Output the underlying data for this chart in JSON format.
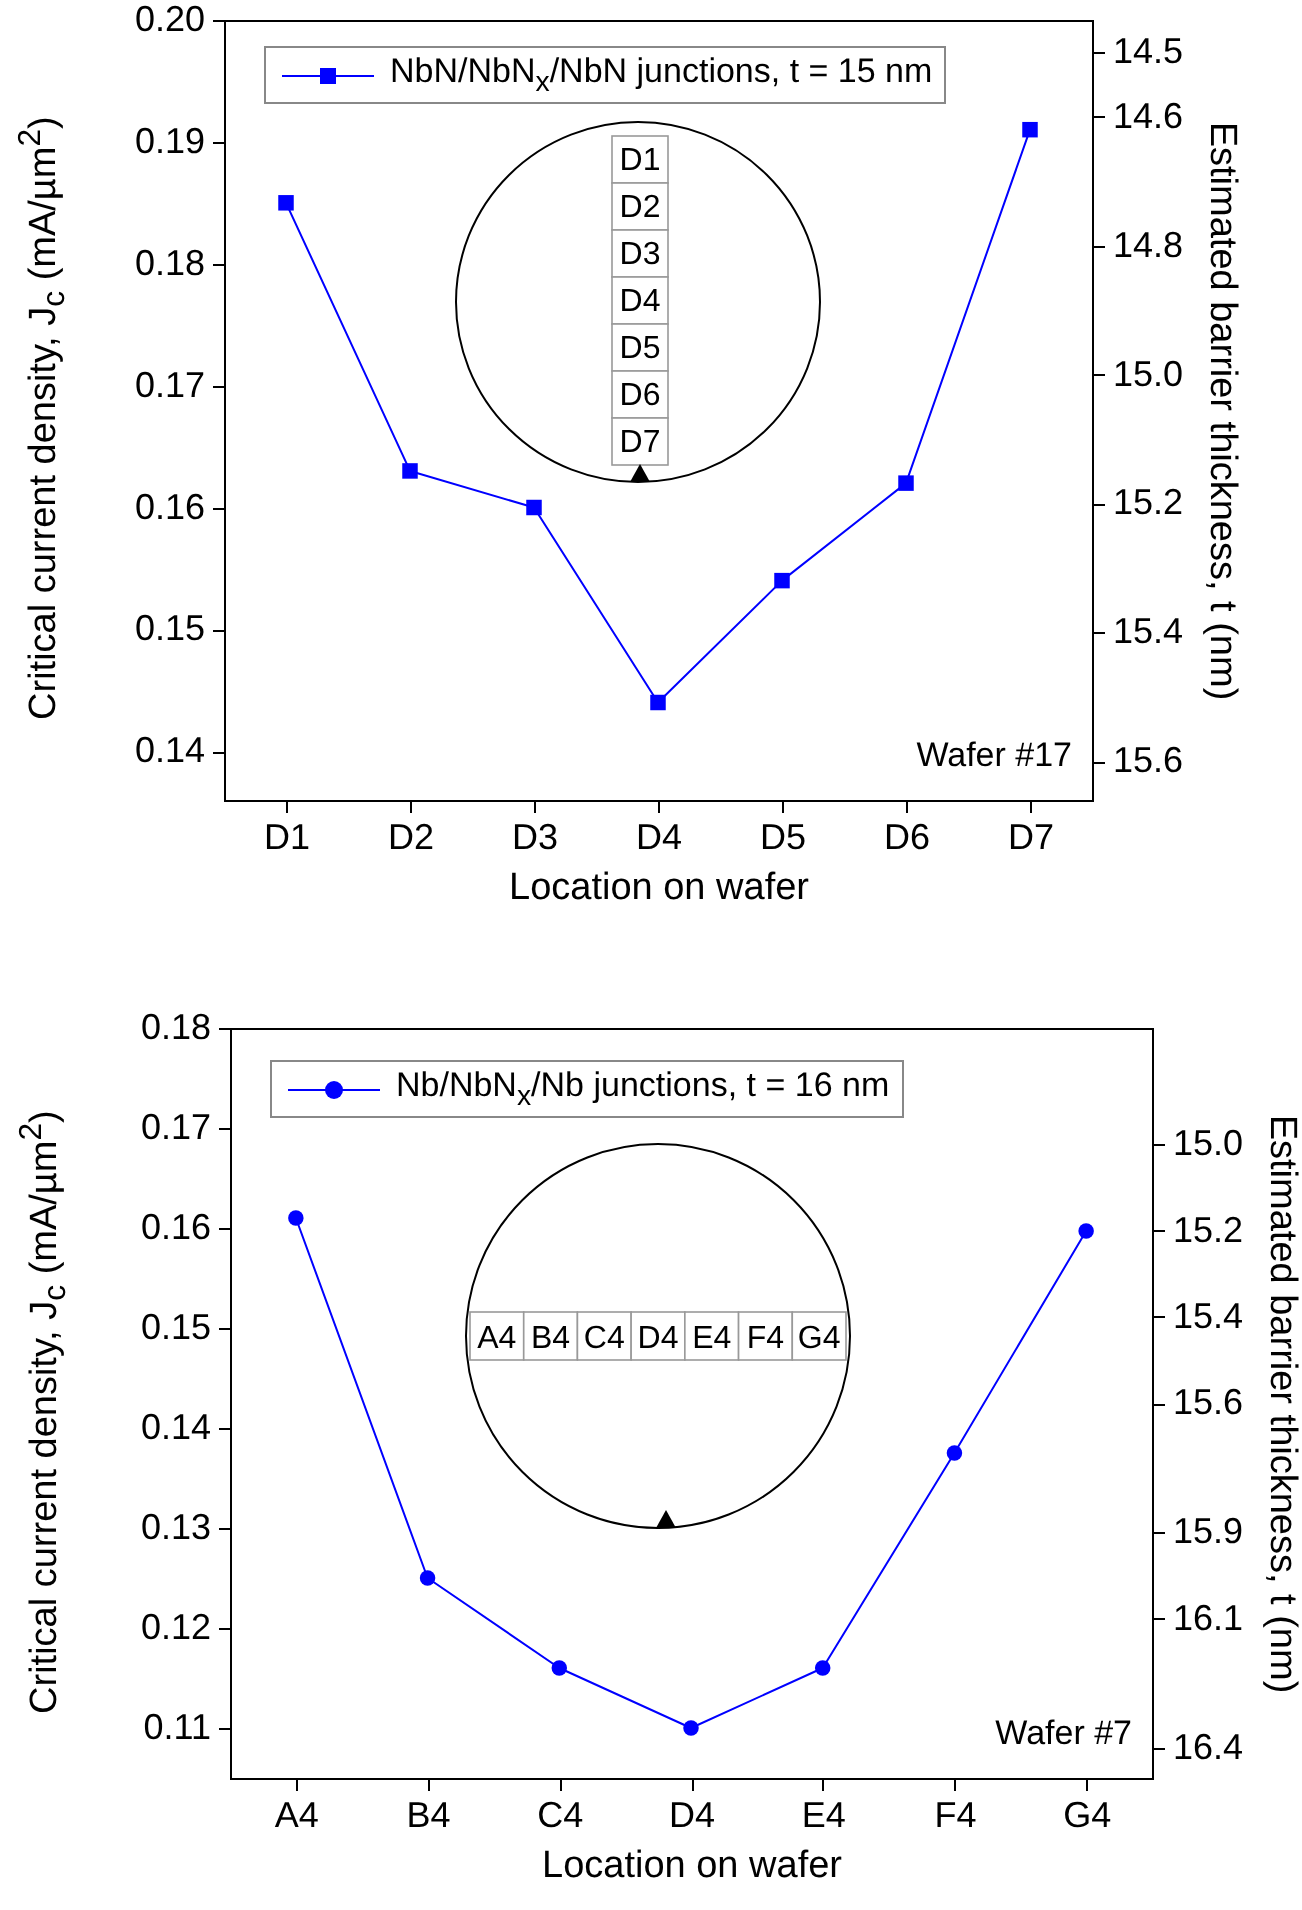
{
  "chart_data": [
    {
      "type": "line",
      "categories": [
        "D1",
        "D2",
        "D3",
        "D4",
        "D5",
        "D6",
        "D7"
      ],
      "xlabel": "Location on wafer",
      "ylabel": "Critical current density, J$_{c}$ (mA/µm$^{2}$)",
      "y2label": "Estimated barrier thickness, t (nm)",
      "ylim": [
        0.136,
        0.2
      ],
      "yticks": [
        0.14,
        0.15,
        0.16,
        0.17,
        0.18,
        0.19,
        {
          "value": 0.2,
          "label": "0.20"
        }
      ],
      "y2lim": [
        15.66,
        14.45
      ],
      "y2ticks": [
        15.6,
        15.4,
        15.2,
        {
          "value": 15.0,
          "label": "15.0"
        },
        14.8,
        14.6,
        14.5
      ],
      "marker": "square",
      "legend": "top left",
      "annotations": [
        "Wafer #17",
        "D1",
        "D2",
        "D3",
        "D4",
        "D5",
        "D6",
        "D7"
      ],
      "series": [
        {
          "name": "NbN/NbN$_{x}$/NbN junctions, t = 15 nm",
          "color": "#0000ff",
          "values": [
            0.185,
            0.163,
            0.16,
            0.144,
            0.154,
            0.162,
            0.191
          ]
        }
      ]
    },
    {
      "type": "line",
      "categories": [
        "A4",
        "B4",
        "C4",
        "D4",
        "E4",
        "F4",
        "G4"
      ],
      "xlabel": "Location on wafer",
      "ylabel": "Critical current density, J$_{c}$ (mA/µm$^{2}$)",
      "y2label": "Estimated barrier thickness, t (nm)",
      "ylim": [
        0.105,
        0.18
      ],
      "yticks": [
        0.11,
        0.12,
        0.13,
        0.14,
        0.15,
        0.16,
        0.17,
        0.18
      ],
      "y2lim": [
        16.47,
        14.73
      ],
      "y2ticks": [
        16.4,
        16.1,
        15.9,
        15.6,
        15.4,
        15.2,
        {
          "value": 15.0,
          "label": "15.0"
        }
      ],
      "marker": "circle",
      "legend": "top left",
      "annotations": [
        "Wafer #7",
        "A4",
        "B4",
        "C4",
        "D4",
        "E4",
        "F4",
        "G4"
      ],
      "series": [
        {
          "name": "Nb/NbN$_{x}$/Nb junctions, t = 16 nm",
          "color": "#0000ff",
          "values": [
            0.161,
            0.125,
            0.116,
            0.11,
            0.116,
            0.1375,
            0.1597
          ]
        }
      ]
    }
  ]
}
